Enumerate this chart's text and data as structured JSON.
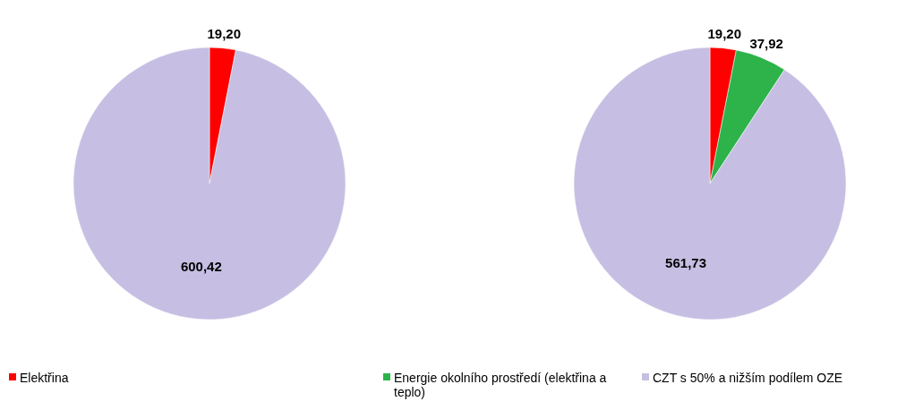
{
  "chart_data": [
    {
      "type": "pie",
      "categories": [
        null,
        null
      ],
      "values": [
        19.2,
        600.42
      ],
      "colors": [
        "#ff0000",
        "#c6bfe3"
      ],
      "value_labels": [
        "19,20",
        "600,42"
      ]
    },
    {
      "type": "pie",
      "categories": [
        "Elektřina",
        "Energie okolního prostředí (elektřina a teplo)",
        "CZT s 50% a nižším podílem OZE"
      ],
      "values": [
        19.2,
        37.92,
        561.73
      ],
      "colors": [
        "#ff0000",
        "#2db34a",
        "#c6bfe3"
      ],
      "value_labels": [
        "19,20",
        "37,92",
        "561,73"
      ],
      "legend": "bottom"
    }
  ]
}
